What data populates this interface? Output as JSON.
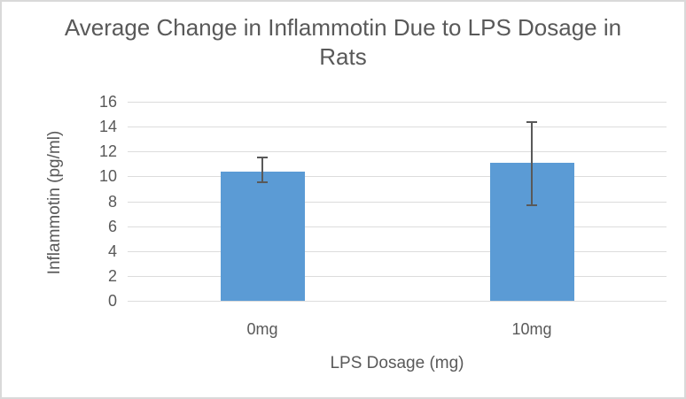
{
  "chart_data": {
    "type": "bar",
    "title": "Average Change in Inflammotin Due to LPS Dosage in Rats",
    "categories": [
      "0mg",
      "10mg"
    ],
    "values": [
      10.4,
      11.1
    ],
    "error_low": [
      9.5,
      7.7
    ],
    "error_high": [
      11.5,
      14.4
    ],
    "xlabel": "LPS Dosage (mg)",
    "ylabel": "Inflammotin (pg/ml)",
    "ylim": [
      0,
      16
    ],
    "yticks": [
      0,
      2,
      4,
      6,
      8,
      10,
      12,
      14,
      16
    ],
    "grid": true,
    "legend_position": "none",
    "colors": {
      "bar": "#5B9BD5",
      "error_bar": "#595959",
      "gridline": "#DCDCDC",
      "text": "#595959",
      "frame_border": "#D9D9D9",
      "background": "#FFFFFF"
    }
  }
}
